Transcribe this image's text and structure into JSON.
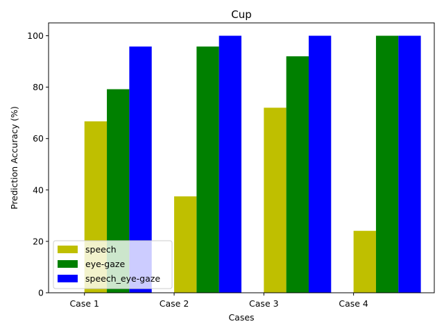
{
  "chart_data": {
    "type": "bar",
    "title": "Cup",
    "xlabel": "Cases",
    "ylabel": "Prediction Accuracy (%)",
    "categories": [
      "Case 1",
      "Case 2",
      "Case 3",
      "Case 4"
    ],
    "series": [
      {
        "name": "speech",
        "color": "#bfbf00",
        "values": [
          66.7,
          37.5,
          72.0,
          24.1
        ]
      },
      {
        "name": "eye-gaze",
        "color": "#008000",
        "values": [
          79.2,
          95.8,
          92.0,
          100.0
        ]
      },
      {
        "name": "speech_eye-gaze",
        "color": "#0000ff",
        "values": [
          95.8,
          100.0,
          100.0,
          100.0
        ]
      }
    ],
    "ylim": [
      0,
      105
    ],
    "yticks": [
      0,
      20,
      40,
      60,
      80,
      100
    ],
    "grid": false,
    "legend_position": "lower-left"
  }
}
